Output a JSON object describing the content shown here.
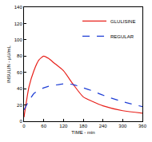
{
  "chart_data": {
    "type": "line",
    "xlabel": "TIME - min",
    "ylabel": "INSULIN - µU/mL",
    "x": [
      0,
      15,
      30,
      45,
      60,
      75,
      90,
      120,
      150,
      180,
      210,
      240,
      300,
      360
    ],
    "series": [
      {
        "name": "GLULISINE",
        "color": "#e8211b",
        "line_style": "solid",
        "values": [
          5,
          42,
          62,
          75,
          80,
          77,
          72,
          62,
          45,
          30,
          24,
          19,
          13,
          10
        ]
      },
      {
        "name": "REGULAR",
        "color": "#1f3fd6",
        "line_style": "dashed",
        "values": [
          14,
          25,
          34,
          38,
          41,
          43,
          44,
          46,
          45,
          41,
          37,
          32,
          24,
          18
        ]
      }
    ],
    "xlim": [
      0,
      360
    ],
    "ylim": [
      0,
      140
    ],
    "xticks": [
      0,
      60,
      120,
      180,
      240,
      300,
      360
    ],
    "yticks": [
      0,
      20,
      40,
      60,
      80,
      100,
      120,
      140
    ],
    "grid": false,
    "legend": "upper right"
  }
}
